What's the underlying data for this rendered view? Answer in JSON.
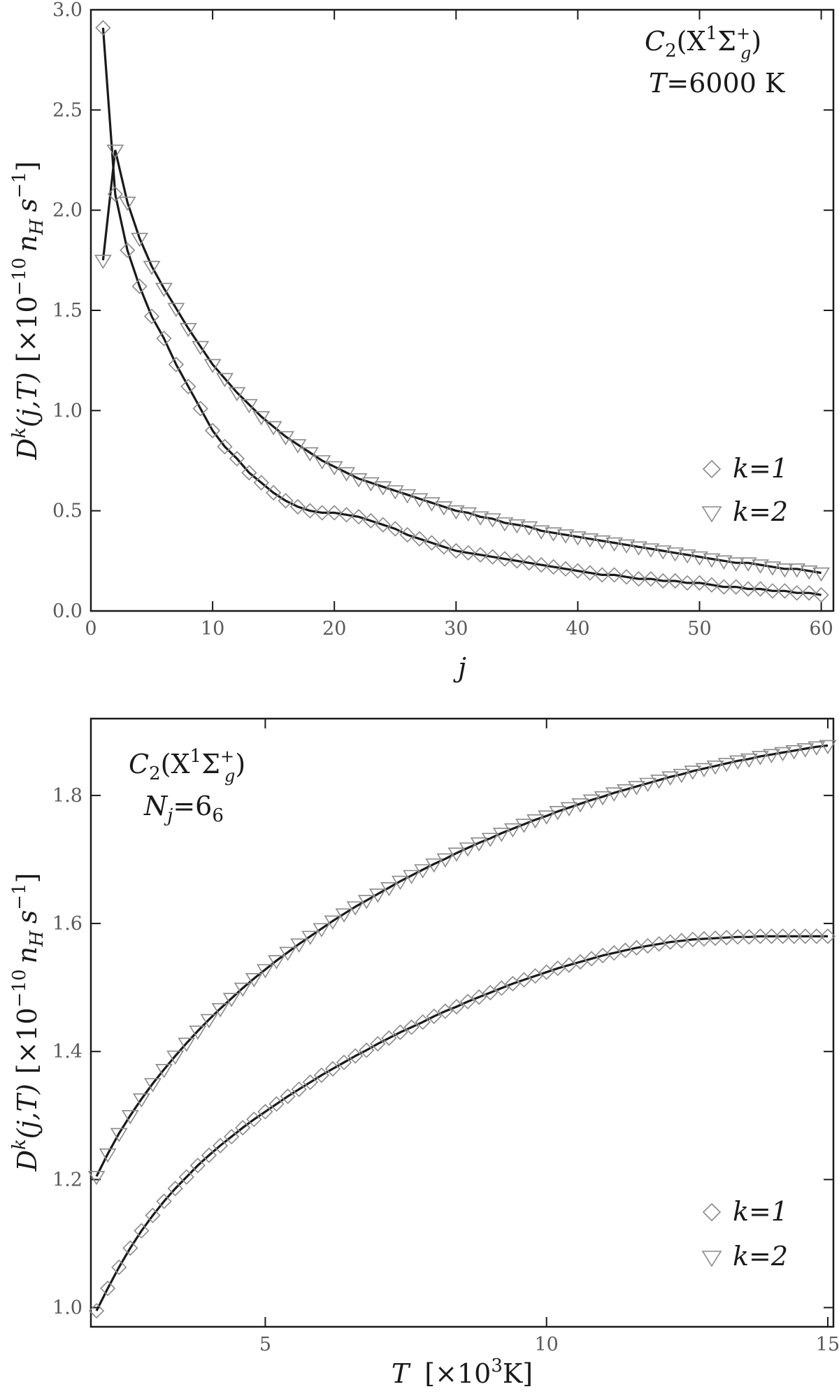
{
  "chart_data": [
    {
      "type": "scatter",
      "title": "",
      "annotations": [
        "C2(X1Σg+)",
        "T=6000 K"
      ],
      "annotation_parts": {
        "molecule": "C",
        "molecule_sub": "2",
        "state_open": "(X",
        "state_sup": "1",
        "state_sigma": "Σ",
        "state_sigma_sup": "+",
        "state_sigma_sub": "g",
        "state_close": ")",
        "cond_var": "T",
        "cond_value": "=6000 K"
      },
      "xlabel": "j",
      "ylabel": "D^k(j,T) [×10^-10 n_H s^-1]",
      "ylabel_parts": {
        "D": "D",
        "k": "k",
        "args": "(j,T)",
        "bracket_open": "[×10",
        "exp": "−10",
        "nH": "n",
        "nH_sub": "H",
        "s": "s",
        "s_sup": "−1",
        "bracket_close": "]"
      },
      "xlim": [
        0,
        61
      ],
      "ylim": [
        0,
        3.0
      ],
      "x_ticks": [
        0,
        10,
        20,
        30,
        40,
        50,
        60
      ],
      "x_tick_labels": [
        "0",
        "10",
        "20",
        "30",
        "40",
        "50",
        "60"
      ],
      "y_ticks": [
        0.0,
        0.5,
        1.0,
        1.5,
        2.0,
        2.5,
        3.0
      ],
      "y_tick_labels": [
        "0.0",
        "0.5",
        "1.0",
        "1.5",
        "2.0",
        "2.5",
        "3.0"
      ],
      "legend_position": "right",
      "series": [
        {
          "name": "k=1",
          "marker": "diamond",
          "x": [
            1,
            2,
            3,
            4,
            5,
            6,
            7,
            8,
            9,
            10,
            11,
            12,
            13,
            14,
            15,
            16,
            17,
            18,
            19,
            20,
            21,
            22,
            23,
            24,
            25,
            26,
            27,
            28,
            29,
            30,
            31,
            32,
            33,
            34,
            35,
            36,
            37,
            38,
            39,
            40,
            41,
            42,
            43,
            44,
            45,
            46,
            47,
            48,
            49,
            50,
            51,
            52,
            53,
            54,
            55,
            56,
            57,
            58,
            59,
            60
          ],
          "y": [
            2.91,
            2.08,
            1.8,
            1.62,
            1.47,
            1.36,
            1.23,
            1.12,
            1.01,
            0.9,
            0.82,
            0.76,
            0.69,
            0.64,
            0.59,
            0.55,
            0.52,
            0.5,
            0.49,
            0.49,
            0.48,
            0.47,
            0.45,
            0.43,
            0.41,
            0.38,
            0.36,
            0.34,
            0.32,
            0.3,
            0.29,
            0.28,
            0.27,
            0.26,
            0.25,
            0.24,
            0.23,
            0.22,
            0.21,
            0.2,
            0.19,
            0.18,
            0.18,
            0.17,
            0.16,
            0.16,
            0.15,
            0.15,
            0.14,
            0.14,
            0.13,
            0.12,
            0.12,
            0.11,
            0.11,
            0.1,
            0.1,
            0.09,
            0.09,
            0.08
          ]
        },
        {
          "name": "k=2",
          "marker": "triangle-down",
          "x": [
            1,
            2,
            3,
            4,
            5,
            6,
            7,
            8,
            9,
            10,
            11,
            12,
            13,
            14,
            15,
            16,
            17,
            18,
            19,
            20,
            21,
            22,
            23,
            24,
            25,
            26,
            27,
            28,
            29,
            30,
            31,
            32,
            33,
            34,
            35,
            36,
            37,
            38,
            39,
            40,
            41,
            42,
            43,
            44,
            45,
            46,
            47,
            48,
            49,
            50,
            51,
            52,
            53,
            54,
            55,
            56,
            57,
            58,
            59,
            60
          ],
          "y": [
            1.75,
            2.3,
            2.04,
            1.86,
            1.72,
            1.61,
            1.51,
            1.41,
            1.32,
            1.23,
            1.16,
            1.09,
            1.03,
            0.97,
            0.92,
            0.87,
            0.83,
            0.79,
            0.75,
            0.72,
            0.69,
            0.66,
            0.64,
            0.62,
            0.6,
            0.58,
            0.56,
            0.54,
            0.52,
            0.5,
            0.49,
            0.47,
            0.46,
            0.44,
            0.43,
            0.42,
            0.4,
            0.39,
            0.38,
            0.37,
            0.36,
            0.35,
            0.34,
            0.33,
            0.32,
            0.31,
            0.3,
            0.29,
            0.28,
            0.27,
            0.26,
            0.25,
            0.24,
            0.24,
            0.23,
            0.22,
            0.21,
            0.21,
            0.2,
            0.19
          ]
        }
      ]
    },
    {
      "type": "scatter",
      "title": "",
      "annotations": [
        "C2(X1Σg+)",
        "Nj=66"
      ],
      "annotation_parts": {
        "molecule": "C",
        "molecule_sub": "2",
        "state_open": "(X",
        "state_sup": "1",
        "state_sigma": "Σ",
        "state_sigma_sup": "+",
        "state_sigma_sub": "g",
        "state_close": ")",
        "cond_var": "N",
        "cond_var_sub": "j",
        "cond_value": "=6",
        "cond_value_sub": "6"
      },
      "xlabel": "T [×10^3K]",
      "xlabel_parts": {
        "T": "T",
        "bracket_open": "[×10",
        "exp": "3",
        "unit_close": "K]"
      },
      "ylabel": "D^k(j,T) [×10^-10 n_H s^-1]",
      "ylabel_parts": {
        "D": "D",
        "k": "k",
        "args": "(j,T)",
        "bracket_open": "[×10",
        "exp": "−10",
        "nH": "n",
        "nH_sub": "H",
        "s": "s",
        "s_sup": "−1",
        "bracket_close": "]"
      },
      "xlim": [
        1.9,
        15.1
      ],
      "ylim": [
        0.97,
        1.92
      ],
      "x_ticks": [
        5,
        10,
        15
      ],
      "x_tick_labels": [
        "5",
        "10",
        "15"
      ],
      "y_ticks": [
        1.0,
        1.2,
        1.4,
        1.6,
        1.8
      ],
      "y_tick_labels": [
        "1.0",
        "1.2",
        "1.4",
        "1.6",
        "1.8"
      ],
      "legend_position": "bottom-right",
      "series": [
        {
          "name": "k=1",
          "marker": "diamond",
          "x": [
            2.0,
            2.2,
            2.4,
            2.6,
            2.8,
            3.0,
            3.2,
            3.4,
            3.6,
            3.8,
            4.0,
            4.2,
            4.4,
            4.6,
            4.8,
            5.0,
            5.2,
            5.4,
            5.6,
            5.8,
            6.0,
            6.2,
            6.4,
            6.6,
            6.8,
            7.0,
            7.2,
            7.4,
            7.6,
            7.8,
            8.0,
            8.2,
            8.4,
            8.6,
            8.8,
            9.0,
            9.2,
            9.4,
            9.6,
            9.8,
            10.0,
            10.2,
            10.4,
            10.6,
            10.8,
            11.0,
            11.2,
            11.4,
            11.6,
            11.8,
            12.0,
            12.2,
            12.4,
            12.6,
            12.8,
            13.0,
            13.2,
            13.4,
            13.6,
            13.8,
            14.0,
            14.2,
            14.4,
            14.6,
            14.8,
            15.0
          ],
          "y": [
            0.995,
            1.03,
            1.063,
            1.093,
            1.12,
            1.144,
            1.166,
            1.186,
            1.204,
            1.222,
            1.238,
            1.253,
            1.267,
            1.281,
            1.294,
            1.306,
            1.318,
            1.33,
            1.341,
            1.352,
            1.363,
            1.373,
            1.383,
            1.393,
            1.402,
            1.412,
            1.421,
            1.43,
            1.438,
            1.446,
            1.455,
            1.463,
            1.47,
            1.478,
            1.485,
            1.492,
            1.499,
            1.506,
            1.512,
            1.518,
            1.524,
            1.53,
            1.535,
            1.54,
            1.545,
            1.55,
            1.554,
            1.558,
            1.562,
            1.565,
            1.568,
            1.571,
            1.573,
            1.575,
            1.576,
            1.577,
            1.578,
            1.579,
            1.579,
            1.58,
            1.58,
            1.58,
            1.58,
            1.58,
            1.58,
            1.58
          ]
        },
        {
          "name": "k=2",
          "marker": "triangle-down",
          "x": [
            2.0,
            2.2,
            2.4,
            2.6,
            2.8,
            3.0,
            3.2,
            3.4,
            3.6,
            3.8,
            4.0,
            4.2,
            4.4,
            4.6,
            4.8,
            5.0,
            5.2,
            5.4,
            5.6,
            5.8,
            6.0,
            6.2,
            6.4,
            6.6,
            6.8,
            7.0,
            7.2,
            7.4,
            7.6,
            7.8,
            8.0,
            8.2,
            8.4,
            8.6,
            8.8,
            9.0,
            9.2,
            9.4,
            9.6,
            9.8,
            10.0,
            10.2,
            10.4,
            10.6,
            10.8,
            11.0,
            11.2,
            11.4,
            11.6,
            11.8,
            12.0,
            12.2,
            12.4,
            12.6,
            12.8,
            13.0,
            13.2,
            13.4,
            13.6,
            13.8,
            14.0,
            14.2,
            14.4,
            14.6,
            14.8,
            15.0
          ],
          "y": [
            1.205,
            1.24,
            1.272,
            1.3,
            1.326,
            1.35,
            1.372,
            1.393,
            1.413,
            1.432,
            1.45,
            1.467,
            1.483,
            1.499,
            1.514,
            1.528,
            1.542,
            1.555,
            1.568,
            1.58,
            1.592,
            1.604,
            1.615,
            1.626,
            1.636,
            1.646,
            1.656,
            1.666,
            1.675,
            1.684,
            1.693,
            1.701,
            1.71,
            1.718,
            1.726,
            1.733,
            1.741,
            1.748,
            1.755,
            1.762,
            1.768,
            1.775,
            1.781,
            1.787,
            1.793,
            1.798,
            1.804,
            1.809,
            1.814,
            1.819,
            1.824,
            1.829,
            1.833,
            1.838,
            1.842,
            1.846,
            1.85,
            1.854,
            1.857,
            1.861,
            1.864,
            1.867,
            1.87,
            1.873,
            1.876,
            1.878
          ]
        }
      ]
    }
  ]
}
